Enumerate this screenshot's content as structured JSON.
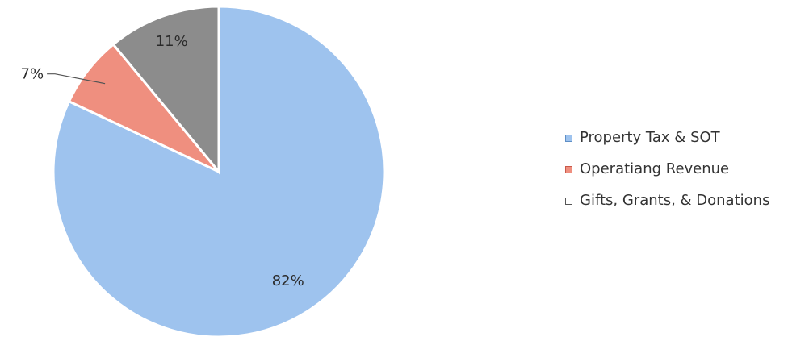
{
  "chart_data": {
    "type": "pie",
    "start_angle": "12 o'clock",
    "direction": "clockwise",
    "slices": [
      {
        "label": "Property Tax & SOT",
        "value": 82,
        "display": "82%",
        "color": "#9ec3ee"
      },
      {
        "label": "Operatiang Revenue",
        "value": 7,
        "display": "7%",
        "color": "#ef8f7f"
      },
      {
        "label": "Gifts, Grants, & Donations",
        "value": 11,
        "display": "11%",
        "color": "#8c8c8c"
      }
    ],
    "legend": {
      "position": "right",
      "entries": [
        "Property Tax & SOT",
        "Operatiang Revenue",
        "Gifts, Grants, & Donations"
      ]
    }
  }
}
